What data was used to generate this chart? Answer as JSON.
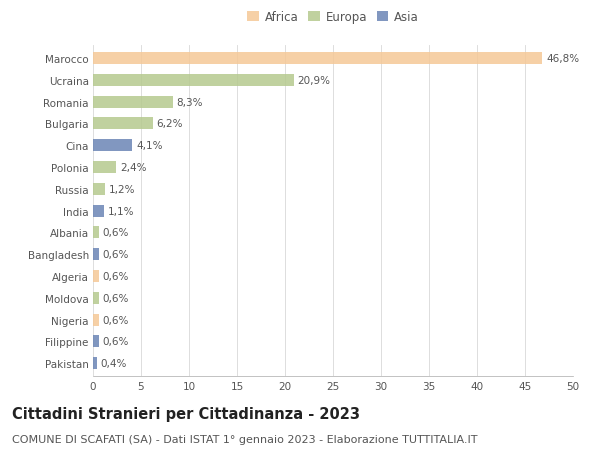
{
  "countries": [
    "Marocco",
    "Ucraina",
    "Romania",
    "Bulgaria",
    "Cina",
    "Polonia",
    "Russia",
    "India",
    "Albania",
    "Bangladesh",
    "Algeria",
    "Moldova",
    "Nigeria",
    "Filippine",
    "Pakistan"
  ],
  "values": [
    46.8,
    20.9,
    8.3,
    6.2,
    4.1,
    2.4,
    1.2,
    1.1,
    0.6,
    0.6,
    0.6,
    0.6,
    0.6,
    0.6,
    0.4
  ],
  "labels": [
    "46,8%",
    "20,9%",
    "8,3%",
    "6,2%",
    "4,1%",
    "2,4%",
    "1,2%",
    "1,1%",
    "0,6%",
    "0,6%",
    "0,6%",
    "0,6%",
    "0,6%",
    "0,6%",
    "0,4%"
  ],
  "colors": [
    "#f5c897",
    "#b5c98e",
    "#b5c98e",
    "#b5c98e",
    "#6b85b5",
    "#b5c98e",
    "#b5c98e",
    "#6b85b5",
    "#b5c98e",
    "#6b85b5",
    "#f5c897",
    "#b5c98e",
    "#f5c897",
    "#6b85b5",
    "#6b85b5"
  ],
  "legend": [
    {
      "label": "Africa",
      "color": "#f5c897"
    },
    {
      "label": "Europa",
      "color": "#b5c98e"
    },
    {
      "label": "Asia",
      "color": "#6b85b5"
    }
  ],
  "xlim": [
    0,
    50
  ],
  "xticks": [
    0,
    5,
    10,
    15,
    20,
    25,
    30,
    35,
    40,
    45,
    50
  ],
  "title": "Cittadini Stranieri per Cittadinanza - 2023",
  "subtitle": "COMUNE DI SCAFATI (SA) - Dati ISTAT 1° gennaio 2023 - Elaborazione TUTTITALIA.IT",
  "background_color": "#ffffff",
  "grid_color": "#d8d8d8",
  "bar_height": 0.55,
  "title_fontsize": 10.5,
  "subtitle_fontsize": 8,
  "label_fontsize": 7.5,
  "tick_fontsize": 7.5,
  "legend_fontsize": 8.5
}
